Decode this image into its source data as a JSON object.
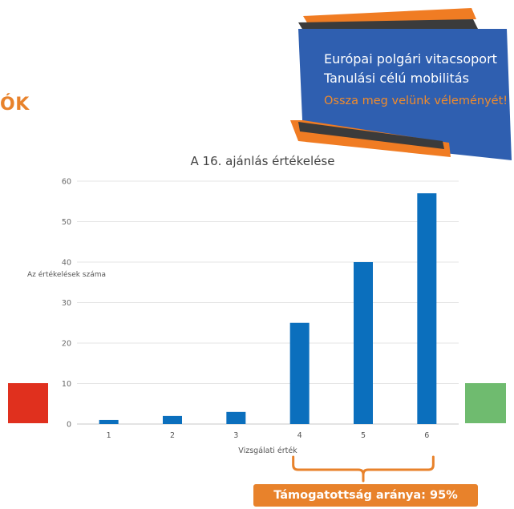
{
  "heading": {
    "text": "ÓK"
  },
  "banner": {
    "line1": "Európai polgári vitacsoport",
    "line2": "Tanulási célú mobilitás",
    "cta": "Ossza meg velünk véleményét!",
    "colors": {
      "panel": "#2f5fb0",
      "accent": "#f07c23",
      "dark_strip": "#3b3b3b"
    }
  },
  "chart_data": {
    "type": "bar",
    "title": "A 16. ajánlás értékelése",
    "xlabel": "Vizsgálati érték",
    "ylabel": "Az értékelések száma",
    "categories": [
      "1",
      "2",
      "3",
      "4",
      "5",
      "6"
    ],
    "values": [
      1,
      2,
      3,
      25,
      40,
      57
    ],
    "ylim": [
      0,
      60
    ],
    "yticks": [
      0,
      10,
      20,
      30,
      40,
      50,
      60
    ],
    "grid": true,
    "bar_color": "#0b6fbd"
  },
  "scale_markers": {
    "low_color": "#e0301e",
    "high_color": "#6fbb6f"
  },
  "support": {
    "text": "Támogatottság aránya: 95%",
    "color": "#e8822b"
  }
}
